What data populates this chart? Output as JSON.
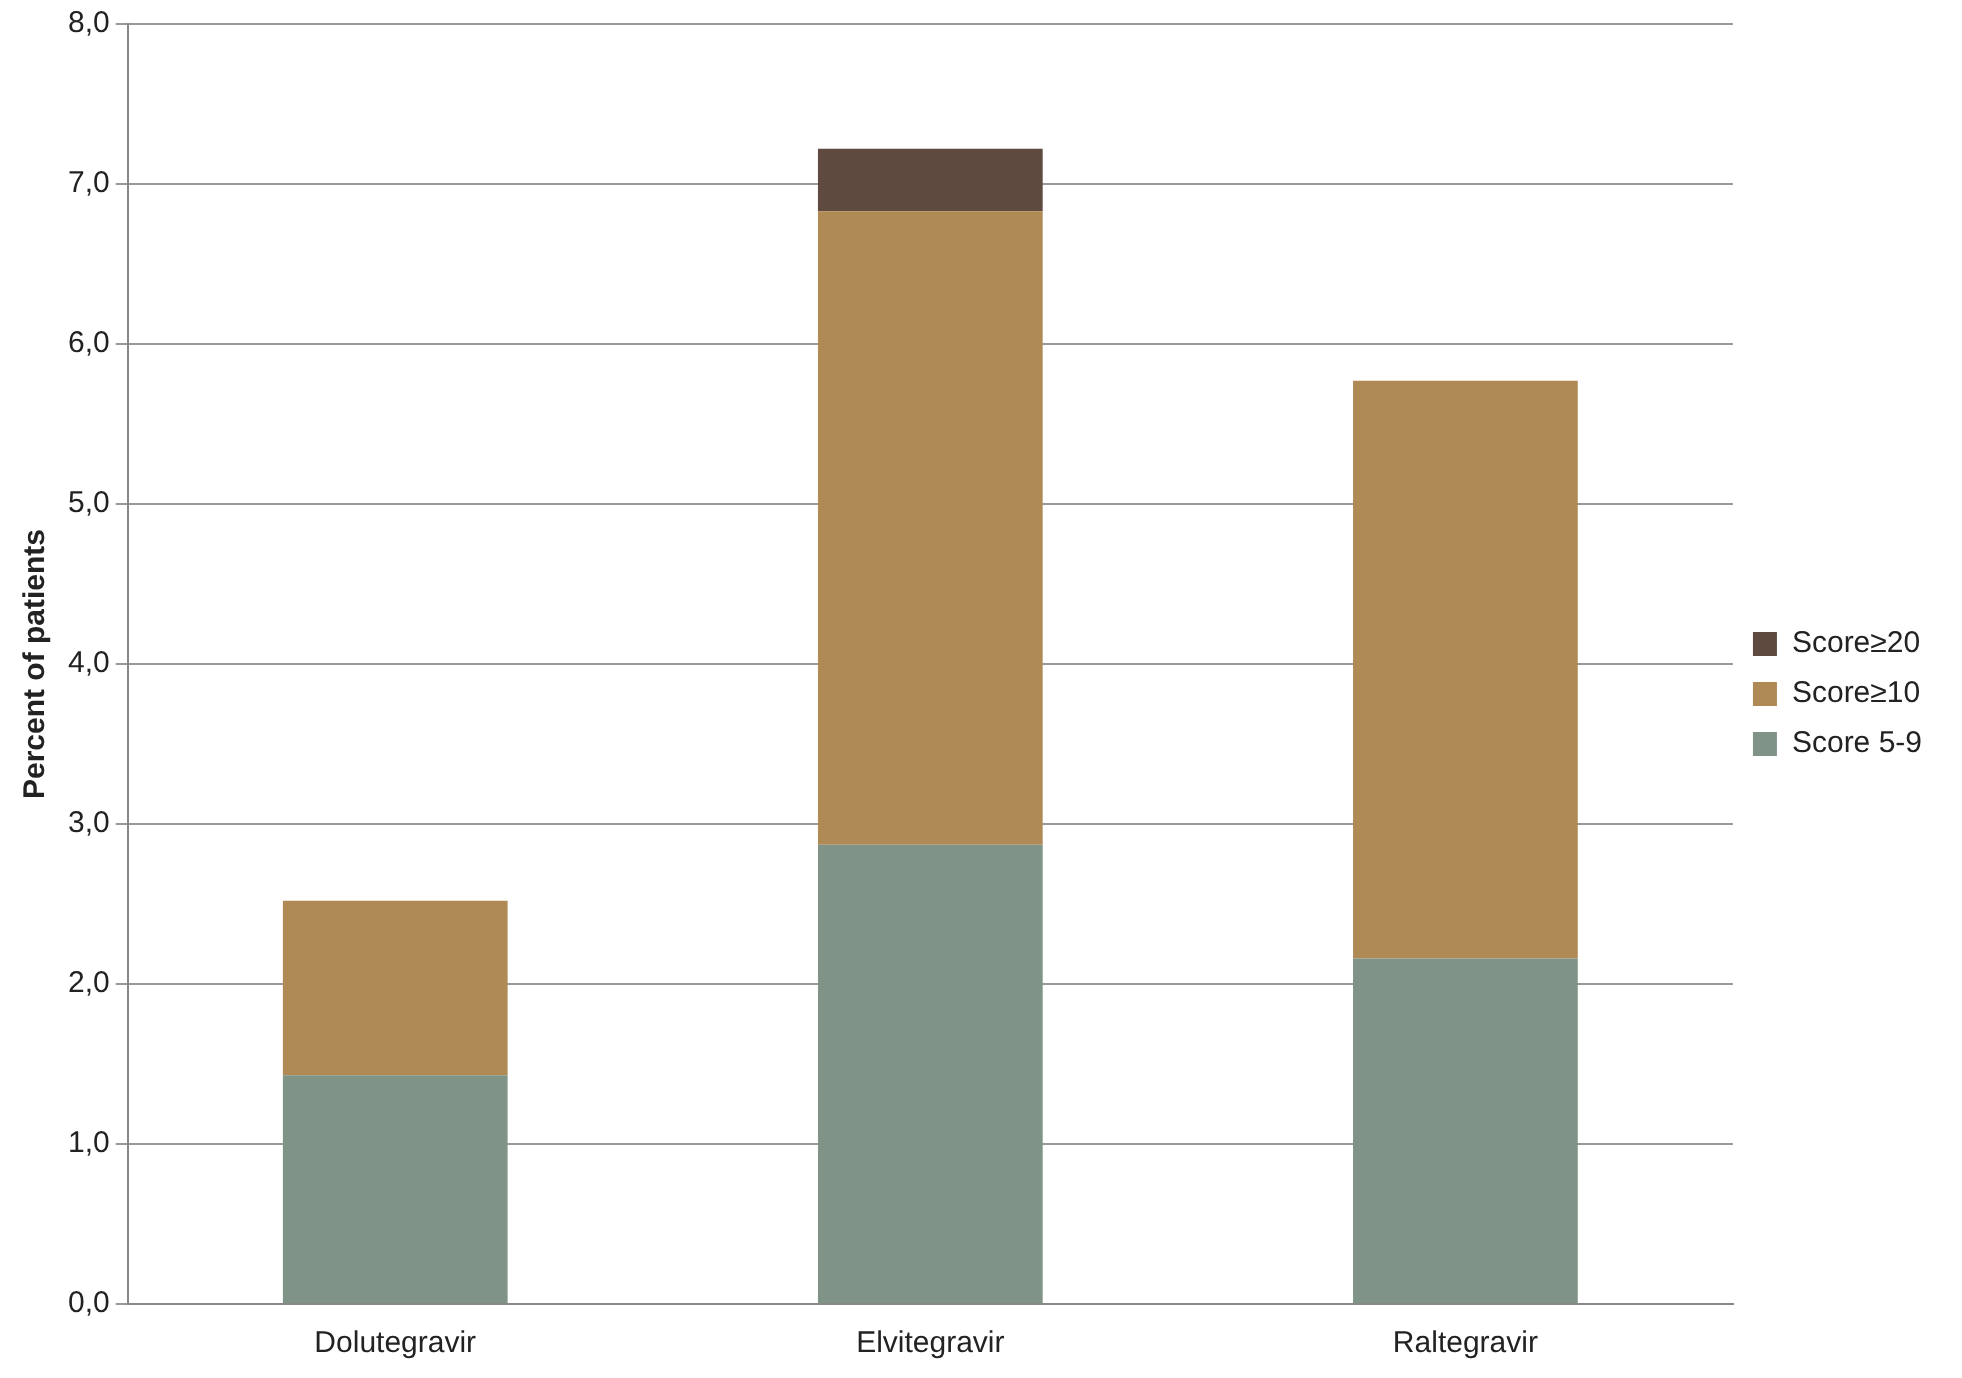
{
  "chart_data": {
    "type": "bar",
    "stacked": true,
    "ylabel": "Percent of patients",
    "categories": [
      "Dolutegravir",
      "Elvitegravir",
      "Raltegravir"
    ],
    "series": [
      {
        "name": "Score 5-9",
        "color": "#7f9487",
        "values": [
          1.43,
          2.87,
          2.16
        ]
      },
      {
        "name": "Score≥10",
        "color": "#b08a55",
        "values": [
          1.09,
          3.96,
          3.61
        ]
      },
      {
        "name": "Score≥20",
        "color": "#5e4a3e",
        "values": [
          null,
          0.39,
          null
        ]
      }
    ],
    "ylim": [
      0,
      8
    ],
    "yticks": [
      {
        "value": 0,
        "label": "0,0"
      },
      {
        "value": 1,
        "label": "1,0"
      },
      {
        "value": 2,
        "label": "2,0"
      },
      {
        "value": 3,
        "label": "3,0"
      },
      {
        "value": 4,
        "label": "4,0"
      },
      {
        "value": 5,
        "label": "5,0"
      },
      {
        "value": 6,
        "label": "6,0"
      },
      {
        "value": 7,
        "label": "7,0"
      },
      {
        "value": 8,
        "label": "8,0"
      }
    ],
    "grid": "y",
    "legend": "right"
  }
}
